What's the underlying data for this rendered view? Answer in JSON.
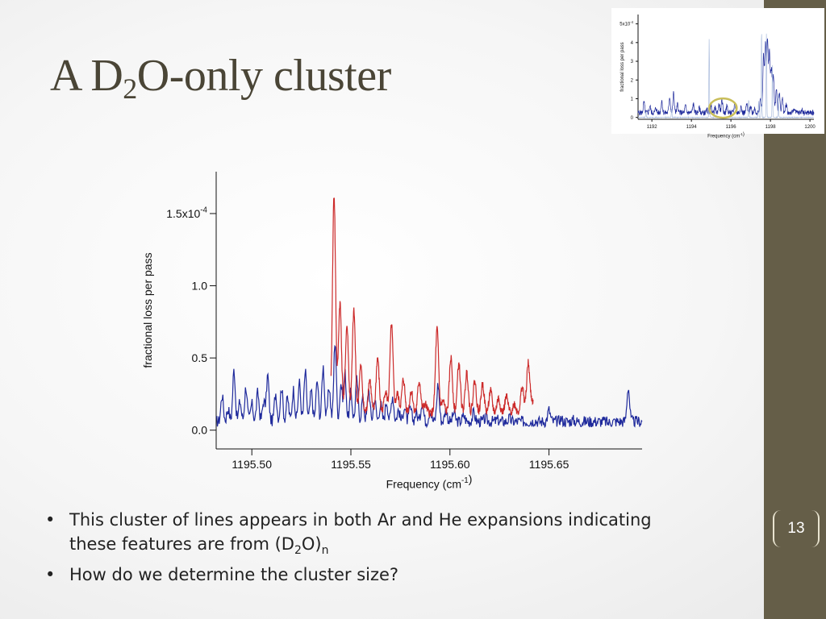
{
  "slide": {
    "title_a": "A D",
    "title_sub": "2",
    "title_b": "O-only cluster",
    "page_number": "13",
    "bullets": [
      {
        "text_a": "This cluster of lines appears in both Ar and He expansions indicating",
        "text_b": "these features are from (D",
        "sub1": "2",
        "text_c": "O)",
        "sub2": "n"
      },
      {
        "text": "How do we determine the cluster size?"
      }
    ]
  },
  "colors": {
    "sidebar": "#655e48",
    "series_blue": "#1f2a9c",
    "series_red": "#cc2a2a",
    "highlight_circle": "#c9be5a"
  },
  "chart_data": [
    {
      "type": "line",
      "xlabel": "Frequency (cm",
      "xlabel_sup": "-1",
      "ylabel": "fractional loss per pass",
      "xlim": [
        1195.482,
        1195.697
      ],
      "ylim": [
        -0.13,
        1.79
      ],
      "y_scale_note": "x10^-4",
      "x_ticks": [
        "1195.50",
        "1195.55",
        "1195.60",
        "1195.65"
      ],
      "y_ticks": [
        "0.0",
        "0.5",
        "1.0",
        "1.5x10"
      ],
      "y_tick_top_sup": "-4",
      "series": [
        {
          "color": "#1f2a9c",
          "peaks": [
            [
              1195.485,
              0.24
            ],
            [
              1195.488,
              0.15
            ],
            [
              1195.491,
              0.42
            ],
            [
              1195.494,
              0.2
            ],
            [
              1195.497,
              0.3
            ],
            [
              1195.5,
              0.18
            ],
            [
              1195.503,
              0.26
            ],
            [
              1195.506,
              0.2
            ],
            [
              1195.508,
              0.38
            ],
            [
              1195.512,
              0.26
            ],
            [
              1195.515,
              0.3
            ],
            [
              1195.518,
              0.22
            ],
            [
              1195.521,
              0.28
            ],
            [
              1195.524,
              0.33
            ],
            [
              1195.527,
              0.4
            ],
            [
              1195.53,
              0.27
            ],
            [
              1195.533,
              0.34
            ],
            [
              1195.536,
              0.44
            ],
            [
              1195.539,
              0.3
            ],
            [
              1195.542,
              0.62
            ],
            [
              1195.545,
              0.32
            ],
            [
              1195.547,
              0.4
            ],
            [
              1195.55,
              0.26
            ],
            [
              1195.553,
              0.35
            ],
            [
              1195.556,
              0.22
            ],
            [
              1195.559,
              0.28
            ],
            [
              1195.562,
              0.22
            ],
            [
              1195.565,
              0.18
            ],
            [
              1195.568,
              0.2
            ],
            [
              1195.571,
              0.24
            ],
            [
              1195.574,
              0.14
            ],
            [
              1195.577,
              0.16
            ],
            [
              1195.58,
              0.15
            ],
            [
              1195.583,
              0.12
            ],
            [
              1195.586,
              0.2
            ],
            [
              1195.59,
              0.14
            ],
            [
              1195.594,
              0.32
            ],
            [
              1195.598,
              0.14
            ],
            [
              1195.602,
              0.12
            ],
            [
              1195.607,
              0.1
            ],
            [
              1195.612,
              0.12
            ],
            [
              1195.618,
              0.08
            ],
            [
              1195.624,
              0.07
            ],
            [
              1195.63,
              0.08
            ],
            [
              1195.637,
              0.06
            ],
            [
              1195.643,
              0.07
            ],
            [
              1195.65,
              0.14
            ],
            [
              1195.656,
              0.08
            ],
            [
              1195.662,
              0.07
            ],
            [
              1195.668,
              0.06
            ],
            [
              1195.674,
              0.06
            ],
            [
              1195.68,
              0.05
            ],
            [
              1195.686,
              0.06
            ],
            [
              1195.69,
              0.3
            ],
            [
              1195.694,
              0.06
            ]
          ]
        },
        {
          "color": "#cc2a2a",
          "peaks": [
            [
              1195.5415,
              1.63
            ],
            [
              1195.5445,
              0.88
            ],
            [
              1195.548,
              0.72
            ],
            [
              1195.5515,
              0.82
            ],
            [
              1195.555,
              0.44
            ],
            [
              1195.5595,
              0.35
            ],
            [
              1195.5635,
              0.5
            ],
            [
              1195.5675,
              0.27
            ],
            [
              1195.5705,
              0.73
            ],
            [
              1195.5735,
              0.25
            ],
            [
              1195.5765,
              0.35
            ],
            [
              1195.5805,
              0.27
            ],
            [
              1195.5845,
              0.34
            ],
            [
              1195.5875,
              0.18
            ],
            [
              1195.5935,
              0.7
            ],
            [
              1195.5965,
              0.2
            ],
            [
              1195.6005,
              0.5
            ],
            [
              1195.6045,
              0.46
            ],
            [
              1195.6085,
              0.4
            ],
            [
              1195.6125,
              0.34
            ],
            [
              1195.6165,
              0.32
            ],
            [
              1195.6205,
              0.27
            ],
            [
              1195.6245,
              0.22
            ],
            [
              1195.6285,
              0.23
            ],
            [
              1195.6325,
              0.18
            ],
            [
              1195.6365,
              0.3
            ],
            [
              1195.6395,
              0.46
            ],
            [
              1195.6415,
              0.2
            ]
          ]
        }
      ]
    },
    {
      "type": "line",
      "xlabel": "Frequency (cm",
      "xlabel_sup": "-1",
      "ylabel": "fractional loss per pass",
      "xlim": [
        1191.3,
        1200.2
      ],
      "ylim": [
        -0.1,
        5.5
      ],
      "x_ticks": [
        "1192",
        "1194",
        "1196",
        "1198",
        "1200"
      ],
      "y_ticks": [
        "0",
        "1",
        "2",
        "3",
        "4",
        "5x10"
      ],
      "y_tick_top_sup": "-4",
      "highlight": {
        "x": 1195.6,
        "y": 0.5
      },
      "series": [
        {
          "color": "#1f2a9c",
          "peaks": [
            [
              1191.6,
              0.8
            ],
            [
              1191.9,
              0.6
            ],
            [
              1192.2,
              0.5
            ],
            [
              1192.5,
              0.9
            ],
            [
              1192.9,
              1.1
            ],
            [
              1193.1,
              1.3
            ],
            [
              1193.3,
              0.7
            ],
            [
              1193.7,
              0.6
            ],
            [
              1194.1,
              0.7
            ],
            [
              1194.4,
              0.5
            ],
            [
              1194.8,
              0.4
            ],
            [
              1195.0,
              0.6
            ],
            [
              1195.2,
              0.5
            ],
            [
              1195.4,
              0.7
            ],
            [
              1195.55,
              0.9
            ],
            [
              1195.8,
              0.6
            ],
            [
              1196.2,
              0.8
            ],
            [
              1196.5,
              0.6
            ],
            [
              1196.8,
              0.7
            ],
            [
              1197.0,
              0.6
            ],
            [
              1197.2,
              0.5
            ],
            [
              1197.5,
              1.0
            ],
            [
              1197.65,
              3.3
            ],
            [
              1197.75,
              3.9
            ],
            [
              1197.85,
              4.2
            ],
            [
              1197.95,
              3.5
            ],
            [
              1198.05,
              2.6
            ],
            [
              1198.15,
              2.3
            ],
            [
              1198.3,
              1.6
            ],
            [
              1198.45,
              1.3
            ],
            [
              1198.6,
              1.0
            ],
            [
              1198.8,
              0.7
            ],
            [
              1199.2,
              0.5
            ],
            [
              1199.6,
              0.4
            ]
          ]
        },
        {
          "color": "#9fb3d8",
          "peaks": [
            [
              1191.7,
              0.3
            ],
            [
              1193.0,
              0.5
            ],
            [
              1194.9,
              4.2
            ],
            [
              1196.9,
              1.0
            ],
            [
              1197.4,
              0.9
            ],
            [
              1197.55,
              4.8
            ],
            [
              1197.8,
              4.6
            ],
            [
              1198.1,
              2.8
            ],
            [
              1198.4,
              1.4
            ]
          ]
        }
      ]
    }
  ]
}
